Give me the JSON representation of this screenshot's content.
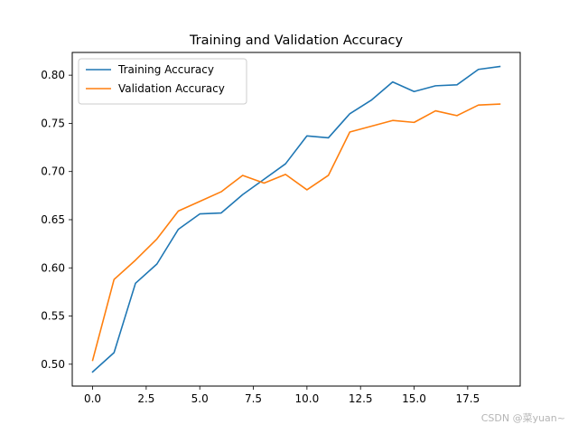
{
  "chart_data": {
    "type": "line",
    "title": "Training and Validation Accuracy",
    "x": [
      0,
      1,
      2,
      3,
      4,
      5,
      6,
      7,
      8,
      9,
      10,
      11,
      12,
      13,
      14,
      15,
      16,
      17,
      18,
      19
    ],
    "series": [
      {
        "name": "Training Accuracy",
        "color": "#1f77b4",
        "values": [
          0.492,
          0.512,
          0.584,
          0.604,
          0.64,
          0.656,
          0.657,
          0.676,
          0.692,
          0.708,
          0.737,
          0.735,
          0.76,
          0.774,
          0.793,
          0.783,
          0.789,
          0.79,
          0.806,
          0.809
        ]
      },
      {
        "name": "Validation Accuracy",
        "color": "#ff7f0e",
        "values": [
          0.504,
          0.588,
          0.608,
          0.63,
          0.659,
          0.669,
          0.679,
          0.696,
          0.688,
          0.697,
          0.681,
          0.696,
          0.741,
          0.747,
          0.753,
          0.751,
          0.763,
          0.758,
          0.769,
          0.77
        ]
      }
    ],
    "xlim": [
      -0.95,
      19.95
    ],
    "ylim": [
      0.4773,
      0.8236
    ],
    "xticks": [
      0,
      2.5,
      5,
      7.5,
      10,
      12.5,
      15,
      17.5
    ],
    "xtick_labels": [
      "0.0",
      "2.5",
      "5.0",
      "7.5",
      "10.0",
      "12.5",
      "15.0",
      "17.5"
    ],
    "yticks": [
      0.5,
      0.55,
      0.6,
      0.65,
      0.7,
      0.75,
      0.8
    ],
    "ytick_labels": [
      "0.50",
      "0.55",
      "0.60",
      "0.65",
      "0.70",
      "0.75",
      "0.80"
    ],
    "legend_position": "upper-left",
    "grid": false
  },
  "watermark": "CSDN @菜yuan~"
}
